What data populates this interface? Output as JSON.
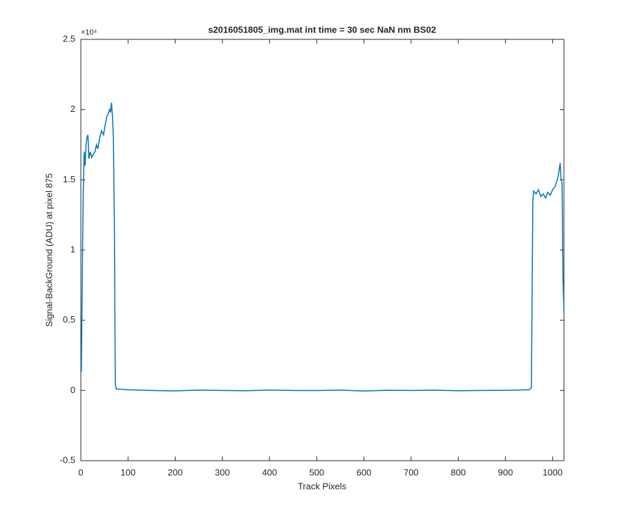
{
  "chart_data": {
    "type": "line",
    "title": "s2016051805_img.mat int time = 30 sec  NaN nm BS02",
    "x_label": "Track Pixels",
    "y_label": "Signal-BackGround (ADU) at pixel 875",
    "y_exponent_label": "×10⁴",
    "color": "#0072bd",
    "x": [
      1,
      3,
      5,
      7,
      9,
      11,
      13,
      15,
      17,
      20,
      23,
      26,
      30,
      33,
      36,
      40,
      44,
      48,
      52,
      55,
      58,
      61,
      63,
      65,
      67,
      69,
      71,
      73,
      75,
      80,
      100,
      150,
      200,
      250,
      300,
      350,
      400,
      450,
      500,
      550,
      600,
      650,
      700,
      750,
      800,
      850,
      900,
      950,
      955,
      958,
      960,
      965,
      970,
      975,
      980,
      985,
      990,
      995,
      1000,
      1005,
      1010,
      1013,
      1016,
      1018,
      1020,
      1022,
      1024
    ],
    "values": [
      1300,
      8000,
      14000,
      17000,
      16000,
      17500,
      18000,
      18200,
      16500,
      17000,
      16600,
      16800,
      17000,
      17500,
      17200,
      18000,
      18500,
      18200,
      19000,
      19500,
      19700,
      20000,
      19800,
      20500,
      19500,
      18000,
      12000,
      500,
      100,
      100,
      50,
      0,
      -30,
      20,
      0,
      -20,
      30,
      0,
      -10,
      20,
      -40,
      10,
      0,
      20,
      -20,
      0,
      10,
      50,
      200,
      13500,
      14200,
      14000,
      14300,
      13800,
      14000,
      13700,
      14100,
      13900,
      14300,
      14500,
      15000,
      15500,
      16200,
      15000,
      14800,
      8000,
      5500
    ],
    "xlim": [
      0,
      1024
    ],
    "xticks": [
      0,
      100,
      200,
      300,
      400,
      500,
      600,
      700,
      800,
      900,
      1000
    ],
    "ylim": [
      -5000,
      25000
    ],
    "yticks": [
      {
        "value": -5000,
        "label": "-0.5"
      },
      0,
      {
        "value": 5000,
        "label": "0.5"
      },
      {
        "value": 10000,
        "label": "1"
      },
      {
        "value": 15000,
        "label": "1.5"
      },
      {
        "value": 20000,
        "label": "2"
      },
      {
        "value": 25000,
        "label": "2.5"
      }
    ]
  }
}
